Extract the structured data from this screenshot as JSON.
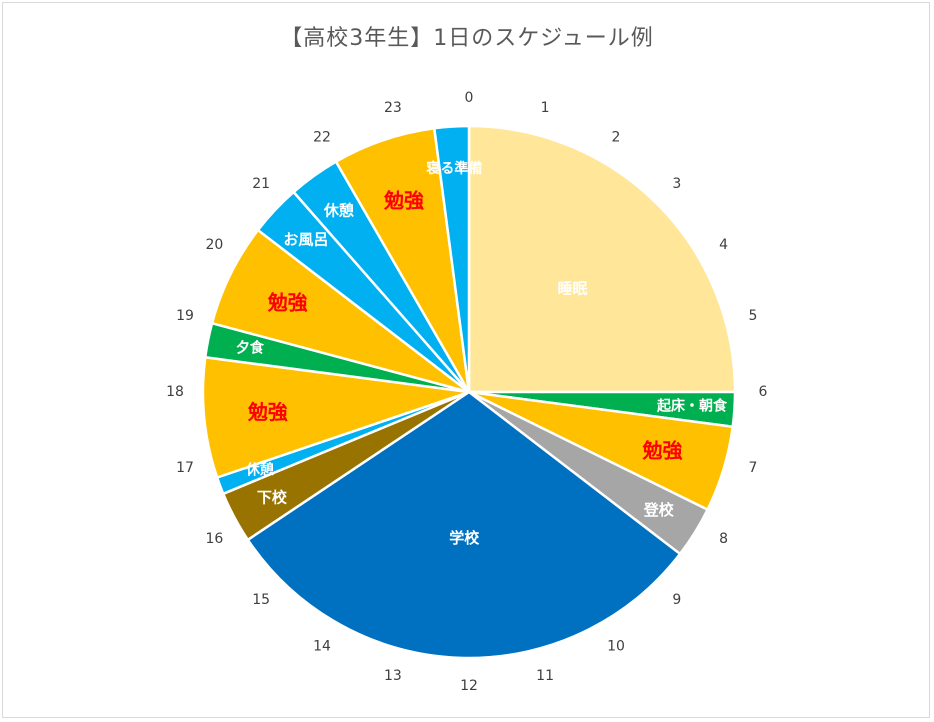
{
  "chart_data": {
    "type": "pie",
    "title": "【高校3年生】1日のスケジュール例",
    "clock_labels": [
      "0",
      "1",
      "2",
      "3",
      "4",
      "5",
      "6",
      "7",
      "8",
      "9",
      "10",
      "11",
      "12",
      "13",
      "14",
      "15",
      "16",
      "17",
      "18",
      "19",
      "20",
      "21",
      "22",
      "23"
    ],
    "slices": [
      {
        "label": "睡眠",
        "start": 0.0,
        "end": 6.0,
        "color": "#FFE699",
        "label_color": "#FFFFFF"
      },
      {
        "label": "起床・朝食",
        "start": 6.0,
        "end": 6.5,
        "color": "#00B050",
        "label_color": "#FFFFFF"
      },
      {
        "label": "勉強",
        "start": 6.5,
        "end": 7.75,
        "color": "#FFC000",
        "label_color": "#FF0000"
      },
      {
        "label": "登校",
        "start": 7.75,
        "end": 8.5,
        "color": "#A6A6A6",
        "label_color": "#FFFFFF"
      },
      {
        "label": "学校",
        "start": 8.5,
        "end": 15.75,
        "color": "#0070C0",
        "label_color": "#FFFFFF"
      },
      {
        "label": "下校",
        "start": 15.75,
        "end": 16.5,
        "color": "#997300",
        "label_color": "#FFFFFF"
      },
      {
        "label": "休憩",
        "start": 16.5,
        "end": 16.75,
        "color": "#00B0F0",
        "label_color": "#FFFFFF"
      },
      {
        "label": "勉強",
        "start": 16.75,
        "end": 18.5,
        "color": "#FFC000",
        "label_color": "#FF0000"
      },
      {
        "label": "夕食",
        "start": 18.5,
        "end": 19.0,
        "color": "#00B050",
        "label_color": "#FFFFFF"
      },
      {
        "label": "勉強",
        "start": 19.0,
        "end": 20.5,
        "color": "#FFC000",
        "label_color": "#FF0000"
      },
      {
        "label": "お風呂",
        "start": 20.5,
        "end": 21.25,
        "color": "#00B0F0",
        "label_color": "#FFFFFF"
      },
      {
        "label": "休憩",
        "start": 21.25,
        "end": 22.0,
        "color": "#00B0F0",
        "label_color": "#FFFFFF"
      },
      {
        "label": "勉強",
        "start": 22.0,
        "end": 23.5,
        "color": "#FFC000",
        "label_color": "#FF0000"
      },
      {
        "label": "寝る準備",
        "start": 23.5,
        "end": 24.0,
        "color": "#00B0F0",
        "label_color": "#FFFFFF"
      }
    ]
  }
}
